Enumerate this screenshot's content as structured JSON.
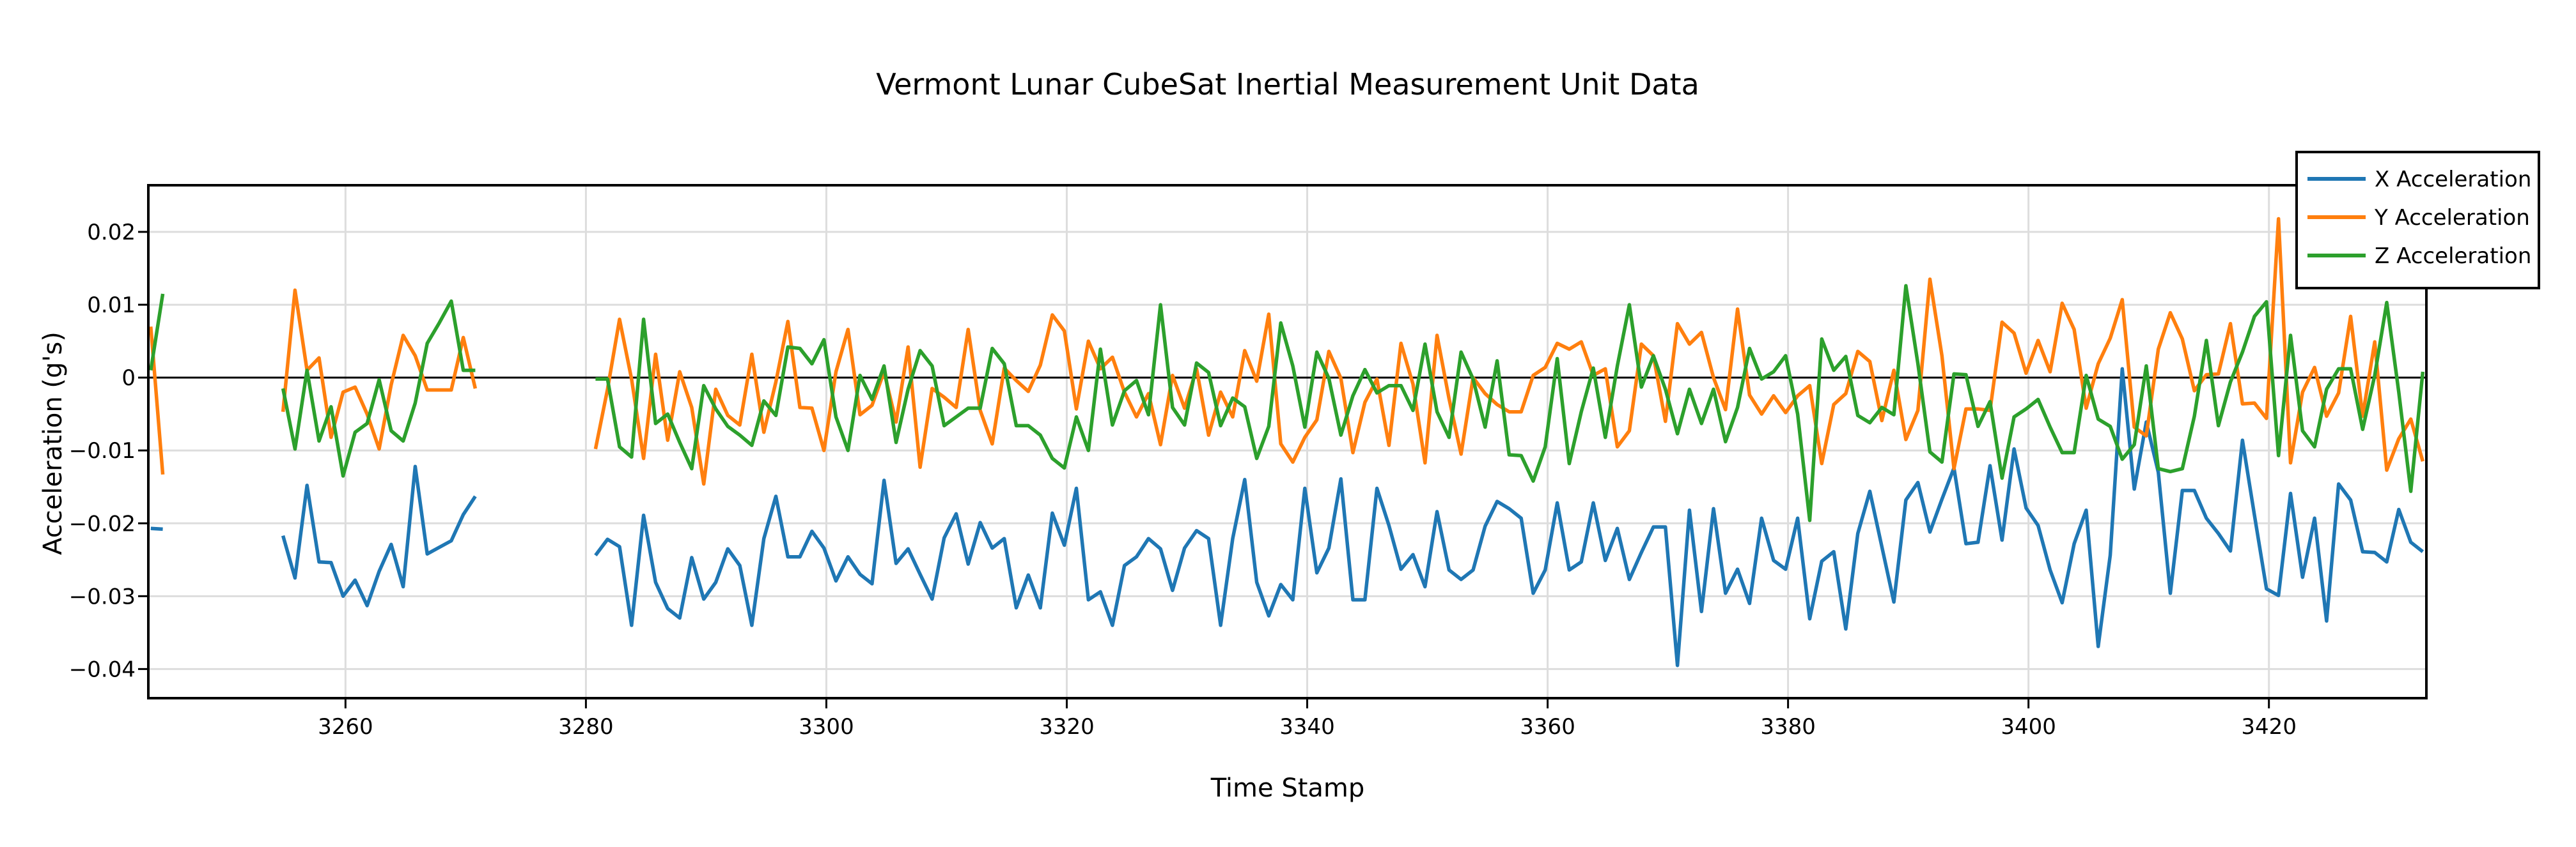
{
  "chart_data": {
    "type": "line",
    "title": "Vermont Lunar CubeSat Inertial Measurement Unit Data",
    "xlabel": "Time Stamp",
    "ylabel": "Acceleration (g's)",
    "xlim": [
      3243.6,
      3433.1
    ],
    "ylim": [
      -0.044,
      0.0264
    ],
    "xticks": [
      3260,
      3280,
      3300,
      3320,
      3340,
      3360,
      3380,
      3400,
      3420
    ],
    "xtick_labels": [
      "3260",
      "3280",
      "3300",
      "3320",
      "3340",
      "3360",
      "3380",
      "3400",
      "3420"
    ],
    "yticks": [
      0.02,
      0.01,
      0,
      -0.01,
      -0.02,
      -0.03,
      -0.04
    ],
    "ytick_labels": [
      "0.02",
      "0.01",
      "0",
      "−0.01",
      "−0.02",
      "−0.03",
      "−0.04"
    ],
    "grid": true,
    "zero_line": true,
    "legend_position": "top-right",
    "x": [
      3243.8,
      3244.8,
      3254.8,
      3255.8,
      3256.8,
      3257.8,
      3258.8,
      3259.8,
      3260.8,
      3261.8,
      3262.8,
      3263.8,
      3264.8,
      3265.8,
      3266.8,
      3267.8,
      3268.8,
      3269.8,
      3270.8,
      3280.8,
      3281.8,
      3282.8,
      3283.8,
      3284.8,
      3285.8,
      3286.8,
      3287.8,
      3288.8,
      3289.8,
      3290.8,
      3291.8,
      3292.8,
      3293.8,
      3294.8,
      3295.8,
      3296.8,
      3297.8,
      3298.8,
      3299.8,
      3300.8,
      3301.8,
      3302.8,
      3303.8,
      3304.8,
      3305.8,
      3306.8,
      3307.8,
      3308.8,
      3309.8,
      3310.8,
      3311.8,
      3312.8,
      3313.8,
      3314.8,
      3315.8,
      3316.8,
      3317.8,
      3318.8,
      3319.8,
      3320.8,
      3321.8,
      3322.8,
      3323.8,
      3324.8,
      3325.8,
      3326.8,
      3327.8,
      3328.8,
      3329.8,
      3330.8,
      3331.8,
      3332.8,
      3333.8,
      3334.8,
      3335.8,
      3336.8,
      3337.8,
      3338.8,
      3339.8,
      3340.8,
      3341.8,
      3342.8,
      3343.8,
      3344.8,
      3345.8,
      3346.8,
      3347.8,
      3348.8,
      3349.8,
      3350.8,
      3351.8,
      3352.8,
      3353.8,
      3354.8,
      3355.8,
      3356.8,
      3357.8,
      3358.8,
      3359.8,
      3360.8,
      3361.8,
      3362.8,
      3363.8,
      3364.8,
      3365.8,
      3366.8,
      3367.8,
      3368.8,
      3369.8,
      3370.8,
      3371.8,
      3372.8,
      3373.8,
      3374.8,
      3375.8,
      3376.8,
      3377.8,
      3378.8,
      3379.8,
      3380.8,
      3381.8,
      3382.8,
      3383.8,
      3384.8,
      3385.8,
      3386.8,
      3387.8,
      3388.8,
      3389.8,
      3390.8,
      3391.8,
      3392.8,
      3393.8,
      3394.8,
      3395.8,
      3396.8,
      3397.8,
      3398.8,
      3399.8,
      3400.8,
      3401.8,
      3402.8,
      3403.8,
      3404.8,
      3405.8,
      3406.8,
      3407.8,
      3408.8,
      3409.8,
      3410.8,
      3411.8,
      3412.8,
      3413.8,
      3414.8,
      3415.8,
      3416.8,
      3417.8,
      3418.8,
      3419.8,
      3420.8,
      3421.8,
      3422.8,
      3423.8,
      3424.8,
      3425.8,
      3426.8,
      3427.8,
      3428.8,
      3429.8,
      3430.8,
      3431.8,
      3432.8
    ],
    "series": [
      {
        "name": "X Acceleration",
        "color": "#1f77b4",
        "values": [
          -0.0207,
          -0.0208,
          -0.0217,
          -0.0275,
          -0.0148,
          -0.0253,
          -0.0254,
          -0.03,
          -0.0278,
          -0.0313,
          -0.0266,
          -0.0229,
          -0.0287,
          -0.0122,
          -0.0242,
          -0.0233,
          -0.0224,
          -0.0188,
          -0.0163,
          -0.0244,
          -0.0222,
          -0.0232,
          -0.034,
          -0.0189,
          -0.0281,
          -0.0317,
          -0.033,
          -0.0247,
          -0.0304,
          -0.0281,
          -0.0235,
          -0.0258,
          -0.034,
          -0.0221,
          -0.0163,
          -0.0246,
          -0.0246,
          -0.0211,
          -0.0234,
          -0.0279,
          -0.0246,
          -0.027,
          -0.0283,
          -0.0141,
          -0.0255,
          -0.0235,
          -0.027,
          -0.0304,
          -0.022,
          -0.0187,
          -0.0256,
          -0.0199,
          -0.0234,
          -0.0221,
          -0.0316,
          -0.0271,
          -0.0316,
          -0.0186,
          -0.023,
          -0.0152,
          -0.0305,
          -0.0294,
          -0.034,
          -0.0258,
          -0.0246,
          -0.0221,
          -0.0235,
          -0.0292,
          -0.0234,
          -0.021,
          -0.0221,
          -0.034,
          -0.0221,
          -0.014,
          -0.0281,
          -0.0327,
          -0.0284,
          -0.0305,
          -0.0152,
          -0.0268,
          -0.0234,
          -0.0139,
          -0.0305,
          -0.0305,
          -0.0152,
          -0.0203,
          -0.0263,
          -0.0243,
          -0.0287,
          -0.0184,
          -0.0264,
          -0.0277,
          -0.0264,
          -0.0204,
          -0.017,
          -0.018,
          -0.0193,
          -0.0296,
          -0.0264,
          -0.0172,
          -0.0264,
          -0.0253,
          -0.0172,
          -0.0251,
          -0.0207,
          -0.0277,
          -0.024,
          -0.0205,
          -0.0205,
          -0.0395,
          -0.0182,
          -0.0321,
          -0.018,
          -0.0296,
          -0.0263,
          -0.031,
          -0.0193,
          -0.0251,
          -0.0263,
          -0.0193,
          -0.0331,
          -0.0252,
          -0.0239,
          -0.0345,
          -0.0214,
          -0.0156,
          -0.0232,
          -0.0308,
          -0.0168,
          -0.0144,
          -0.0212,
          -0.0167,
          -0.0124,
          -0.0228,
          -0.0226,
          -0.0121,
          -0.0223,
          -0.0098,
          -0.0179,
          -0.0203,
          -0.0264,
          -0.0309,
          -0.0228,
          -0.0182,
          -0.0369,
          -0.0244,
          0.0012,
          -0.0153,
          -0.0061,
          -0.013,
          -0.0296,
          -0.0155,
          -0.0155,
          -0.0193,
          -0.0214,
          -0.0238,
          -0.0086,
          -0.0189,
          -0.029,
          -0.0299,
          -0.0159,
          -0.0274,
          -0.0193,
          -0.0334,
          -0.0146,
          -0.0168,
          -0.0239,
          -0.024,
          -0.0253,
          -0.0181,
          -0.0226,
          -0.0239
        ]
      },
      {
        "name": "Y Acceleration",
        "color": "#ff7f0e",
        "values": [
          0.007,
          -0.0133,
          -0.0047,
          0.012,
          0.001,
          0.0027,
          -0.0082,
          -0.002,
          -0.0013,
          -0.005,
          -0.0098,
          -0.001,
          0.0058,
          0.003,
          -0.0017,
          -0.0017,
          -0.0017,
          0.0055,
          -0.0015,
          -0.0098,
          -0.0016,
          0.008,
          -0.0002,
          -0.0111,
          0.0032,
          -0.0086,
          0.0008,
          -0.0041,
          -0.0146,
          -0.0016,
          -0.0052,
          -0.0065,
          0.0032,
          -0.0075,
          -0.0006,
          0.0077,
          -0.0041,
          -0.0042,
          -0.01,
          0.0008,
          0.0066,
          -0.0051,
          -0.0038,
          0.0008,
          -0.0061,
          0.0042,
          -0.0123,
          -0.0015,
          -0.0027,
          -0.0041,
          0.0066,
          -0.0045,
          -0.0091,
          0.0013,
          -0.0004,
          -0.0019,
          0.0017,
          0.0086,
          0.0064,
          -0.0043,
          0.005,
          0.0012,
          0.0028,
          -0.002,
          -0.0054,
          -0.0022,
          -0.0092,
          0.0003,
          -0.0042,
          0.0012,
          -0.0079,
          -0.002,
          -0.0054,
          0.0037,
          -0.0005,
          0.0087,
          -0.0091,
          -0.0116,
          -0.0082,
          -0.0058,
          0.0036,
          -0.0001,
          -0.0103,
          -0.0034,
          -0.0002,
          -0.0093,
          0.0047,
          -0.0009,
          -0.0117,
          0.0058,
          -0.0029,
          -0.0105,
          0.0,
          -0.0022,
          -0.0037,
          -0.0047,
          -0.0047,
          0.0003,
          0.0014,
          0.0047,
          0.0039,
          0.0049,
          0.0003,
          0.0012,
          -0.0095,
          -0.0073,
          0.0046,
          0.003,
          -0.006,
          0.0074,
          0.0046,
          0.0062,
          0.0,
          -0.0044,
          0.0094,
          -0.0024,
          -0.005,
          -0.0025,
          -0.0048,
          -0.0025,
          -0.0011,
          -0.0118,
          -0.0037,
          -0.0022,
          0.0036,
          0.0022,
          -0.0059,
          0.001,
          -0.0085,
          -0.0045,
          0.0135,
          0.003,
          -0.0125,
          -0.0043,
          -0.0043,
          -0.0045,
          0.0076,
          0.0061,
          0.0006,
          0.0051,
          0.0008,
          0.0102,
          0.0066,
          -0.0042,
          0.0019,
          0.0054,
          0.0107,
          -0.0068,
          -0.008,
          0.0039,
          0.0089,
          0.0053,
          -0.0018,
          0.0004,
          0.0005,
          0.0074,
          -0.0036,
          -0.0035,
          -0.0056,
          0.0218,
          -0.0117,
          -0.002,
          0.0014,
          -0.0053,
          -0.0021,
          0.0084,
          -0.0053,
          0.0049,
          -0.0127,
          -0.0084,
          -0.0057,
          -0.0115
        ]
      },
      {
        "name": "Z Acceleration",
        "color": "#2ca02c",
        "values": [
          0.001,
          0.0115,
          -0.0015,
          -0.0098,
          0.001,
          -0.0087,
          -0.004,
          -0.0135,
          -0.0075,
          -0.0063,
          -0.0003,
          -0.0073,
          -0.0087,
          -0.0035,
          0.0047,
          0.0075,
          0.0105,
          0.001,
          0.001,
          -0.0002,
          -0.0002,
          -0.0095,
          -0.0109,
          0.008,
          -0.0063,
          -0.005,
          -0.0089,
          -0.0125,
          -0.0011,
          -0.0043,
          -0.0067,
          -0.0079,
          -0.0093,
          -0.0032,
          -0.0052,
          0.0042,
          0.004,
          0.0019,
          0.0052,
          -0.0054,
          -0.01,
          0.0003,
          -0.003,
          0.0016,
          -0.0089,
          -0.0016,
          0.0037,
          0.0016,
          -0.0066,
          -0.0054,
          -0.0042,
          -0.0042,
          0.004,
          0.0019,
          -0.0066,
          -0.0066,
          -0.0079,
          -0.0111,
          -0.0124,
          -0.0054,
          -0.01,
          0.0039,
          -0.0065,
          -0.0018,
          -0.0004,
          -0.0051,
          0.01,
          -0.0041,
          -0.0065,
          0.002,
          0.0007,
          -0.0066,
          -0.0028,
          -0.004,
          -0.0111,
          -0.0067,
          0.0075,
          0.0016,
          -0.0068,
          0.0035,
          -0.0001,
          -0.0079,
          -0.0025,
          0.0011,
          -0.0021,
          -0.0011,
          -0.0011,
          -0.0045,
          0.0046,
          -0.0047,
          -0.0082,
          0.0035,
          -0.0002,
          -0.0068,
          0.0023,
          -0.0106,
          -0.0107,
          -0.0142,
          -0.0095,
          0.0026,
          -0.0118,
          -0.0047,
          0.0013,
          -0.0082,
          0.0016,
          0.01,
          -0.0013,
          0.003,
          -0.0016,
          -0.0077,
          -0.0016,
          -0.0063,
          -0.0016,
          -0.0088,
          -0.0041,
          0.004,
          -0.0002,
          0.0008,
          0.003,
          -0.005,
          -0.0196,
          0.0053,
          0.001,
          0.0029,
          -0.0052,
          -0.0062,
          -0.0041,
          -0.0051,
          0.0126,
          0.0019,
          -0.0102,
          -0.0116,
          0.0005,
          0.0004,
          -0.0067,
          -0.0033,
          -0.0138,
          -0.0054,
          -0.0043,
          -0.003,
          -0.0068,
          -0.0103,
          -0.0103,
          0.0003,
          -0.0057,
          -0.0067,
          -0.0112,
          -0.0092,
          0.0016,
          -0.0125,
          -0.0129,
          -0.0125,
          -0.0053,
          0.0051,
          -0.0066,
          -0.0006,
          0.0035,
          0.0084,
          0.0104,
          -0.0107,
          0.0058,
          -0.0073,
          -0.0095,
          -0.0016,
          0.0012,
          0.0012,
          -0.0071,
          0.0003,
          0.0103,
          -0.002,
          -0.0156,
          0.0008
        ]
      }
    ]
  }
}
